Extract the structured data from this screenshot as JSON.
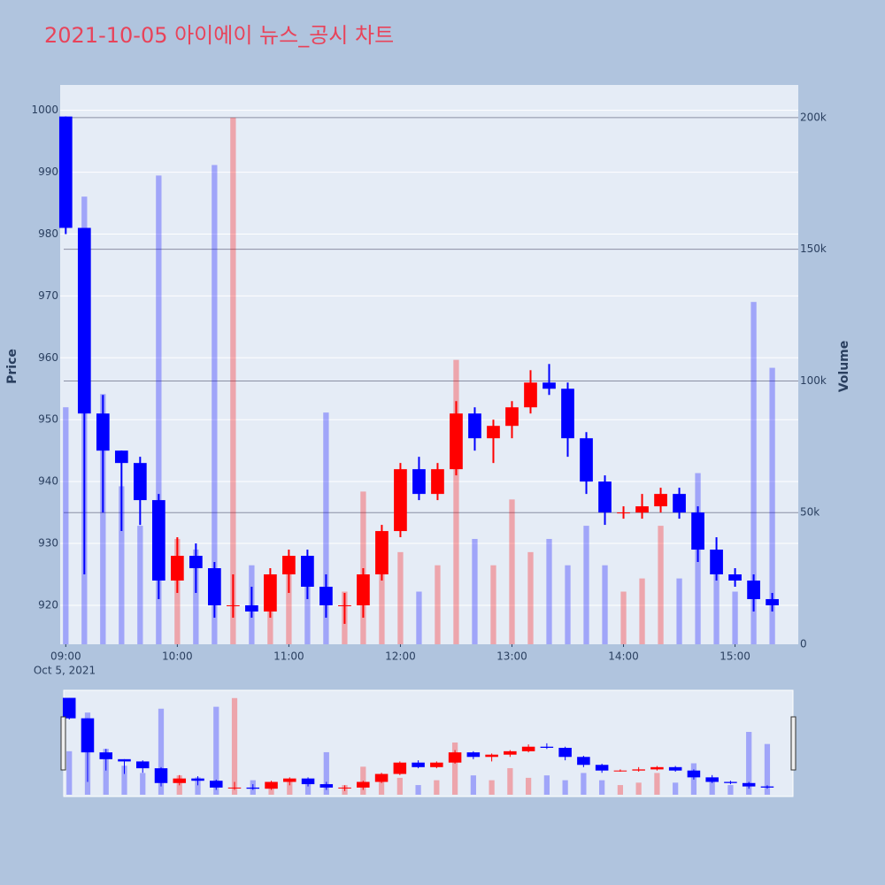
{
  "chart_data": {
    "type": "candlestick",
    "title": "2021-10-05 아이에이 뉴스_공시 차트",
    "y_title": "Price",
    "y2_title": "Volume",
    "x": [
      "2021-10-05 09:00",
      "2021-10-05 09:10",
      "2021-10-05 09:20",
      "2021-10-05 09:30",
      "2021-10-05 09:40",
      "2021-10-05 09:50",
      "2021-10-05 10:00",
      "2021-10-05 10:10",
      "2021-10-05 10:20",
      "2021-10-05 10:30",
      "2021-10-05 10:40",
      "2021-10-05 10:50",
      "2021-10-05 11:00",
      "2021-10-05 11:10",
      "2021-10-05 11:20",
      "2021-10-05 11:30",
      "2021-10-05 11:40",
      "2021-10-05 11:50",
      "2021-10-05 12:00",
      "2021-10-05 12:10",
      "2021-10-05 12:20",
      "2021-10-05 12:30",
      "2021-10-05 12:40",
      "2021-10-05 12:50",
      "2021-10-05 13:00",
      "2021-10-05 13:10",
      "2021-10-05 13:20",
      "2021-10-05 13:30",
      "2021-10-05 13:40",
      "2021-10-05 13:50",
      "2021-10-05 14:00",
      "2021-10-05 14:10",
      "2021-10-05 14:20",
      "2021-10-05 14:30",
      "2021-10-05 14:40",
      "2021-10-05 14:50",
      "2021-10-05 15:00",
      "2021-10-05 15:10",
      "2021-10-05 15:20"
    ],
    "open": [
      999,
      981,
      951,
      945,
      943,
      937,
      924,
      928,
      926,
      920,
      920,
      919,
      925,
      928,
      923,
      920,
      920,
      925,
      932,
      942,
      938,
      942,
      951,
      947,
      949,
      952,
      956,
      955,
      947,
      940,
      935,
      935,
      936,
      938,
      935,
      929,
      925,
      924,
      921
    ],
    "high": [
      999,
      981,
      954,
      945,
      944,
      938,
      931,
      930,
      927,
      925,
      923,
      926,
      929,
      929,
      925,
      922,
      926,
      933,
      943,
      944,
      943,
      953,
      952,
      950,
      953,
      958,
      959,
      956,
      948,
      941,
      936,
      938,
      939,
      939,
      936,
      931,
      926,
      925,
      922
    ],
    "low": [
      980,
      925,
      935,
      932,
      933,
      921,
      922,
      922,
      918,
      918,
      918,
      918,
      922,
      921,
      918,
      917,
      918,
      924,
      931,
      937,
      937,
      941,
      945,
      943,
      947,
      951,
      954,
      944,
      938,
      933,
      934,
      934,
      935,
      934,
      927,
      924,
      923,
      919,
      919
    ],
    "close": [
      981,
      951,
      945,
      943,
      937,
      924,
      928,
      926,
      920,
      920,
      919,
      925,
      928,
      923,
      920,
      920,
      925,
      932,
      942,
      938,
      942,
      951,
      947,
      949,
      952,
      956,
      955,
      947,
      940,
      935,
      935,
      936,
      938,
      935,
      929,
      925,
      924,
      921,
      920
    ],
    "volume": [
      90000,
      170000,
      95000,
      60000,
      45000,
      178000,
      40000,
      36000,
      182000,
      200000,
      30000,
      25000,
      30000,
      30000,
      88000,
      20000,
      58000,
      30000,
      35000,
      20000,
      30000,
      108000,
      40000,
      30000,
      55000,
      35000,
      40000,
      30000,
      45000,
      30000,
      20000,
      25000,
      45000,
      25000,
      65000,
      30000,
      20000,
      130000,
      105000
    ],
    "increasing_color": "#ff0000",
    "decreasing_color": "#0000ff",
    "xlim": [
      "2021-10-05 08:57",
      "2021-10-05 15:34"
    ],
    "xticks": [
      {
        "value": "2021-10-05 09:00",
        "label": "09:00"
      },
      {
        "value": "2021-10-05 10:00",
        "label": "10:00"
      },
      {
        "value": "2021-10-05 11:00",
        "label": "11:00"
      },
      {
        "value": "2021-10-05 12:00",
        "label": "12:00"
      },
      {
        "value": "2021-10-05 13:00",
        "label": "13:00"
      },
      {
        "value": "2021-10-05 14:00",
        "label": "14:00"
      },
      {
        "value": "2021-10-05 15:00",
        "label": "15:00"
      }
    ],
    "x_date_label": "Oct 5, 2021",
    "ylim": [
      913.7,
      1004.1
    ],
    "yticks": [
      920,
      930,
      940,
      950,
      960,
      970,
      980,
      990,
      1000
    ],
    "y2lim": [
      0,
      212400
    ],
    "y2ticks": [
      0,
      {
        "value": 50000,
        "label": "50k"
      },
      {
        "value": 100000,
        "label": "100k"
      },
      {
        "value": 150000,
        "label": "150k"
      },
      {
        "value": 200000,
        "label": "200k"
      }
    ],
    "grid": true,
    "rangeslider": true
  }
}
